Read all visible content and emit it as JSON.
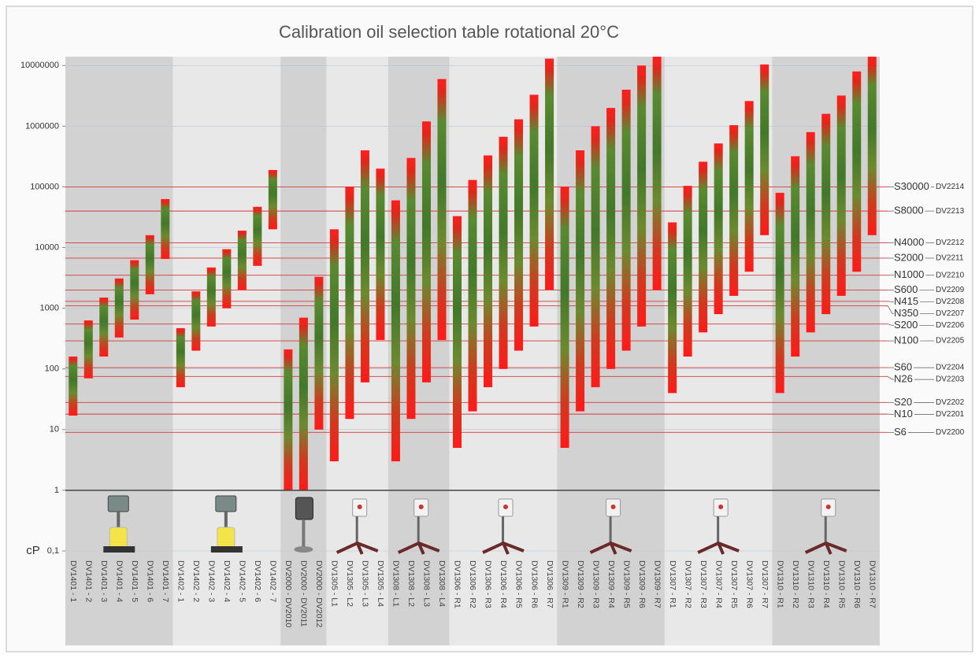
{
  "chart_data": {
    "type": "range_bar",
    "title": "Calibration oil selection table rotational 20°C",
    "y_label": "cP",
    "log_scale": true,
    "ylim": [
      0.1,
      14000000
    ],
    "yticks": [
      {
        "value": 0.1,
        "label": "0,1"
      },
      1,
      10,
      100,
      1000,
      10000,
      100000,
      1000000,
      10000000
    ],
    "grid": true,
    "categories": [
      "DV1401 - 1",
      "DV1401 - 2",
      "DV1401 - 3",
      "DV1401 - 4",
      "DV1401 - 5",
      "DV1401 - 6",
      "DV1401 - 7",
      "DV1402 - 1",
      "DV1402 - 2",
      "DV1402 - 3",
      "DV1402 - 4",
      "DV1402 - 5",
      "DV1402 - 6",
      "DV1402 - 7",
      "DV2000 - DV2010",
      "DV2000 - DV2011",
      "DV2000 - DV2012",
      "DV1305 - L1",
      "DV1305 - L2",
      "DV1305 - L3",
      "DV1305 - L4",
      "DV1308 - L1",
      "DV1308 - L2",
      "DV1308 - L3",
      "DV1308 - L4",
      "DV1306 - R1",
      "DV1306 - R2",
      "DV1306 - R3",
      "DV1306 - R4",
      "DV1306 - R5",
      "DV1306 - R6",
      "DV1306 - R7",
      "DV1309 - R1",
      "DV1309 - R2",
      "DV1309 - R3",
      "DV1309 - R4",
      "DV1309 - R5",
      "DV1309 - R6",
      "DV1309 - R7",
      "DV1307 - R1",
      "DV1307 - R2",
      "DV1307 - R3",
      "DV1307 - R4",
      "DV1307 - R5",
      "DV1307 - R6",
      "DV1307 - R7",
      "DV1310 - R1",
      "DV1310 - R2",
      "DV1310 - R3",
      "DV1310 - R4",
      "DV1310 - R5",
      "DV1310 - R6",
      "DV1310 - R7"
    ],
    "low": [
      17,
      70,
      160,
      330,
      650,
      1700,
      6500,
      50,
      200,
      500,
      1000,
      2000,
      5000,
      20000,
      1,
      1,
      10,
      3,
      15,
      60,
      300,
      3,
      15,
      60,
      300,
      5,
      20,
      50,
      100,
      200,
      500,
      2000,
      5,
      20,
      50,
      100,
      200,
      500,
      2000,
      40,
      160,
      400,
      800,
      1600,
      4000,
      16000,
      40,
      160,
      400,
      800,
      1600,
      4000,
      16000
    ],
    "high": [
      160,
      630,
      1500,
      3100,
      6200,
      16000,
      63000,
      470,
      1900,
      4700,
      9400,
      19000,
      47000,
      190000,
      210,
      700,
      3300,
      20000,
      100000,
      400000,
      200000,
      60000,
      300000,
      1200000,
      6000000,
      33000,
      130000,
      330000,
      670000,
      1300000,
      3300000,
      13000000,
      100000,
      400000,
      1000000,
      2000000,
      4000000,
      10000000,
      14000000,
      26000,
      104000,
      260000,
      520000,
      1040000,
      2600000,
      10400000,
      80000,
      320000,
      800000,
      1600000,
      3200000,
      8000000,
      14000000
    ],
    "reference_color": "#d23a3a",
    "reference_lines": [
      {
        "label": "S30000",
        "code": "DV2214",
        "value": 100000
      },
      {
        "label": "S8000",
        "code": "DV2213",
        "value": 40000
      },
      {
        "label": "N4000",
        "code": "DV2212",
        "value": 12000
      },
      {
        "label": "S2000",
        "code": "DV2211",
        "value": 6700
      },
      {
        "label": "N1000",
        "code": "DV2210",
        "value": 3500
      },
      {
        "label": "S600",
        "code": "DV2209",
        "value": 2000
      },
      {
        "label": "N415",
        "code": "DV2208",
        "value": 1300
      },
      {
        "label": "N350",
        "code": "DV2207",
        "value": 1100
      },
      {
        "label": "S200",
        "code": "DV2206",
        "value": 550
      },
      {
        "label": "N100",
        "code": "DV2205",
        "value": 290
      },
      {
        "label": "S60",
        "code": "DV2204",
        "value": 105
      },
      {
        "label": "N26",
        "code": "DV2203",
        "value": 75
      },
      {
        "label": "S20",
        "code": "DV2202",
        "value": 28
      },
      {
        "label": "N10",
        "code": "DV2201",
        "value": 18
      },
      {
        "label": "S6",
        "code": "DV2200",
        "value": 9
      }
    ]
  }
}
